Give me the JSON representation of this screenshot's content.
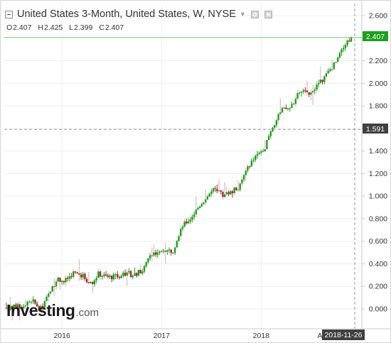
{
  "header": {
    "symbol_title": "United States 3-Month, United States, W, NYSE",
    "ohlc": {
      "open_label": "O",
      "open_value": "2.407",
      "high_label": "H",
      "high_value": "2.425",
      "low_label": "L",
      "low_value": "2.399",
      "close_label": "C",
      "close_value": "2.407"
    },
    "icons": [
      "collapse-icon",
      "chevron-down-icon",
      "settings-icon",
      "close-icon"
    ]
  },
  "price_axis": {
    "ticks": [
      "2.600",
      "2.400",
      "2.200",
      "2.000",
      "1.800",
      "1.600",
      "1.400",
      "1.200",
      "1.000",
      "0.800",
      "0.600",
      "0.400",
      "0.200",
      "0.000"
    ],
    "last_price_label": "2.407",
    "crosshair_price_label": "1.591"
  },
  "time_axis": {
    "labels": [
      "2016",
      "2017",
      "2018"
    ],
    "truncated_label": "A",
    "crosshair_date_label": "2018-11-26"
  },
  "branding": {
    "logo_main": "Investing",
    "logo_domain": ".com"
  },
  "colors": {
    "up": "#1e9e1e",
    "down": "#a52a2a",
    "wick_faint": "#d9aab5",
    "grid": "#eeeeee",
    "last_price_bg": "#1e9e1e",
    "last_price_line": "#7ed07e",
    "crosshair": "#9a9a9a",
    "crosshair_label_bg": "#404040"
  },
  "chart_data": {
    "type": "candlestick",
    "timeframe": "W",
    "ylim": [
      -0.1,
      2.65
    ],
    "grid": true,
    "last_price": 2.407,
    "crosshair_price": 1.591,
    "anchors": [
      [
        "2015-06-15",
        0.01
      ],
      [
        "2015-08-10",
        0.02
      ],
      [
        "2015-09-21",
        0.06
      ],
      [
        "2015-10-19",
        0.0
      ],
      [
        "2015-11-16",
        0.12
      ],
      [
        "2015-12-07",
        0.22
      ],
      [
        "2015-12-21",
        0.27
      ],
      [
        "2016-01-11",
        0.24
      ],
      [
        "2016-02-15",
        0.32
      ],
      [
        "2016-03-21",
        0.29
      ],
      [
        "2016-04-18",
        0.22
      ],
      [
        "2016-05-16",
        0.31
      ],
      [
        "2016-06-20",
        0.28
      ],
      [
        "2016-07-25",
        0.29
      ],
      [
        "2016-08-22",
        0.32
      ],
      [
        "2016-09-19",
        0.3
      ],
      [
        "2016-10-24",
        0.34
      ],
      [
        "2016-11-21",
        0.46
      ],
      [
        "2016-12-19",
        0.52
      ],
      [
        "2017-01-16",
        0.51
      ],
      [
        "2017-02-13",
        0.52
      ],
      [
        "2017-03-13",
        0.72
      ],
      [
        "2017-04-17",
        0.8
      ],
      [
        "2017-05-22",
        0.92
      ],
      [
        "2017-06-26",
        1.02
      ],
      [
        "2017-07-10",
        1.05
      ],
      [
        "2017-08-14",
        1.01
      ],
      [
        "2017-09-11",
        1.03
      ],
      [
        "2017-10-16",
        1.09
      ],
      [
        "2017-11-13",
        1.26
      ],
      [
        "2017-12-18",
        1.36
      ],
      [
        "2018-01-15",
        1.44
      ],
      [
        "2018-02-12",
        1.62
      ],
      [
        "2018-03-19",
        1.76
      ],
      [
        "2018-04-16",
        1.78
      ],
      [
        "2018-05-21",
        1.92
      ],
      [
        "2018-06-25",
        1.92
      ],
      [
        "2018-07-23",
        1.98
      ],
      [
        "2018-08-20",
        2.05
      ],
      [
        "2018-09-24",
        2.17
      ],
      [
        "2018-10-22",
        2.32
      ],
      [
        "2018-11-26",
        2.407
      ]
    ],
    "series": [
      {
        "name": "United States 3-Month",
        "values_note": "weekly OHLC approximated from the anchor closes"
      }
    ]
  }
}
